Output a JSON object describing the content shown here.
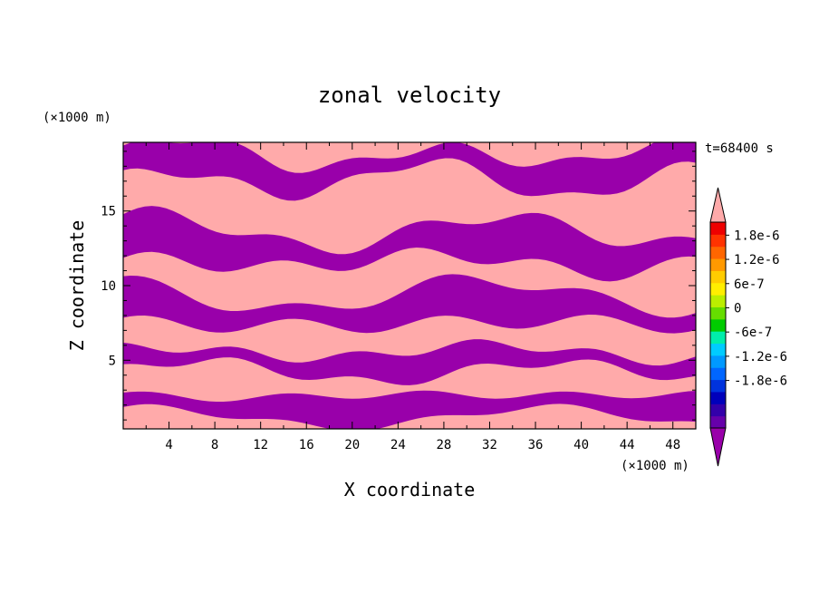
{
  "chart_data": {
    "type": "heatmap",
    "title": "zonal velocity",
    "time_label": "t=68400 s",
    "xlabel": "X coordinate",
    "ylabel": "Z coordinate",
    "x_unit": "(×1000 m)",
    "z_unit": "(×1000 m)",
    "xlim": [
      0,
      50
    ],
    "ylim": [
      0.4,
      19.6
    ],
    "x_ticks": [
      "4",
      "8",
      "12",
      "16",
      "20",
      "24",
      "28",
      "32",
      "36",
      "40",
      "44",
      "48"
    ],
    "y_ticks": [
      "5",
      "10",
      "15"
    ],
    "colorbar": {
      "tick_labels": [
        "1.8e-6",
        "1.2e-6",
        "6e-7",
        "0",
        "-6e-7",
        "-1.2e-6",
        "-1.8e-6"
      ],
      "positive_color": "#ffaaaa",
      "negative_color": "#9900aa",
      "band_colors": [
        "#6600aa",
        "#3300aa",
        "#0000bb",
        "#0033dd",
        "#0066ff",
        "#0099ff",
        "#00ccff",
        "#00eeaa",
        "#00cc00",
        "#66dd00",
        "#bbee00",
        "#ffee00",
        "#ffcc00",
        "#ff9900",
        "#ff6600",
        "#ff3300",
        "#ee0000"
      ]
    },
    "bands": [
      {
        "sign": "positive",
        "z_center": 19.2,
        "z_half_width": 0.45,
        "pattern": "top"
      },
      {
        "sign": "negative",
        "z_center": 17.9,
        "z_half_width": 1.1,
        "pattern": "wave-a"
      },
      {
        "sign": "positive",
        "z_center": 15.2,
        "z_half_width": 1.3,
        "pattern": "wave-b"
      },
      {
        "sign": "negative",
        "z_center": 12.6,
        "z_half_width": 1.4,
        "pattern": "wave-c"
      },
      {
        "sign": "positive",
        "z_center": 10.6,
        "z_half_width": 0.9,
        "pattern": "wave-d"
      },
      {
        "sign": "negative",
        "z_center": 8.4,
        "z_half_width": 1.3,
        "pattern": "wave-e"
      },
      {
        "sign": "positive",
        "z_center": 6.4,
        "z_half_width": 0.9,
        "pattern": "wave-f"
      },
      {
        "sign": "negative",
        "z_center": 4.9,
        "z_half_width": 0.9,
        "pattern": "wave-g"
      },
      {
        "sign": "positive",
        "z_center": 3.5,
        "z_half_width": 0.6,
        "pattern": "wave-h"
      },
      {
        "sign": "negative",
        "z_center": 1.9,
        "z_half_width": 1.0,
        "pattern": "wave-i"
      },
      {
        "sign": "positive",
        "z_center": 0.7,
        "z_half_width": 0.3,
        "pattern": "bottom"
      }
    ]
  }
}
